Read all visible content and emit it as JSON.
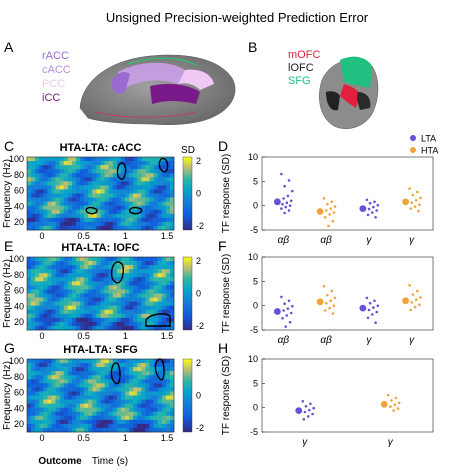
{
  "figure": {
    "title": "Unsigned Precision-weighted Prediction Error",
    "colors": {
      "lta": "#6a4fd8",
      "hta": "#f0a33a",
      "contour": "#000000"
    }
  },
  "panels": {
    "A": {
      "letter": "A",
      "labels": [
        {
          "text": "rACC",
          "color": "#9a6ad0"
        },
        {
          "text": "cACC",
          "color": "#b990e0"
        },
        {
          "text": "PCC",
          "color": "#f0c8f4"
        },
        {
          "text": "iCC",
          "color": "#7a1a8a"
        }
      ]
    },
    "B": {
      "letter": "B",
      "labels": [
        {
          "text": "mOFC",
          "color": "#e0203c"
        },
        {
          "text": "lOFC",
          "color": "#1a1a1a"
        },
        {
          "text": "SFG",
          "color": "#20c080"
        }
      ]
    },
    "tf_maps": [
      {
        "letter": "C",
        "title": "HTA-LTA: cACC"
      },
      {
        "letter": "E",
        "title": "HTA-LTA: lOFC"
      },
      {
        "letter": "G",
        "title": "HTA-LTA: SFG"
      }
    ],
    "tf_axes": {
      "ylabel": "Frequency (Hz)",
      "yticks": [
        "100",
        "80",
        "60",
        "40",
        "20"
      ],
      "xticks": [
        "0",
        "0.5",
        "1",
        "1.5"
      ],
      "xlabel": "Time (s)",
      "outcome_label": "Outcome",
      "colorbar_title": "SD",
      "colorbar_ticks": [
        "2",
        "0",
        "-2"
      ]
    },
    "scatter": {
      "ylabel": "TF response (SD)",
      "yticks": [
        "10",
        "5",
        "0",
        "-5"
      ],
      "legend": [
        "LTA",
        "HTA"
      ],
      "panels": [
        {
          "letter": "D",
          "xticks": [
            "αβ",
            "αβ",
            "γ",
            "γ"
          ]
        },
        {
          "letter": "F",
          "xticks": [
            "αβ",
            "αβ",
            "γ",
            "γ"
          ]
        },
        {
          "letter": "H",
          "xticks": [
            "γ",
            "γ"
          ]
        }
      ]
    }
  },
  "chart_data": [
    {
      "type": "scatter",
      "panel": "D",
      "ylim": [
        -5,
        10
      ],
      "categories": [
        "αβ",
        "αβ",
        "γ",
        "γ"
      ],
      "series": [
        {
          "name": "LTA",
          "group_index": 0,
          "mean": 0.8,
          "points": [
            6.5,
            5.2,
            4.0,
            3.0,
            2.0,
            1.5,
            1.0,
            0.6,
            0.3,
            0.0,
            -0.3,
            -0.6,
            -1.0,
            -1.5
          ]
        },
        {
          "name": "HTA",
          "group_index": 1,
          "mean": -1.2,
          "points": [
            1.5,
            0.8,
            0.3,
            -0.2,
            -0.6,
            -1.0,
            -1.4,
            -1.8,
            -2.4,
            -3.2,
            -4.2
          ]
        },
        {
          "name": "LTA",
          "group_index": 2,
          "mean": -0.6,
          "points": [
            1.2,
            0.8,
            0.5,
            0.1,
            -0.3,
            -0.7,
            -1.0,
            -1.4,
            -1.9,
            -2.4
          ]
        },
        {
          "name": "HTA",
          "group_index": 3,
          "mean": 0.8,
          "points": [
            3.5,
            2.8,
            2.2,
            1.6,
            1.1,
            0.6,
            0.2,
            -0.2,
            -0.6,
            -1.1
          ]
        }
      ]
    },
    {
      "type": "scatter",
      "panel": "F",
      "ylim": [
        -5,
        10
      ],
      "categories": [
        "αβ",
        "αβ",
        "γ",
        "γ"
      ],
      "series": [
        {
          "name": "LTA",
          "group_index": 0,
          "mean": -1.2,
          "points": [
            1.8,
            1.0,
            0.4,
            -0.1,
            -0.6,
            -1.0,
            -1.5,
            -2.0,
            -2.6,
            -3.4,
            -4.3
          ]
        },
        {
          "name": "HTA",
          "group_index": 1,
          "mean": 0.8,
          "points": [
            4.0,
            3.0,
            2.2,
            1.6,
            1.0,
            0.5,
            0.0,
            -0.5,
            -1.0,
            -1.6
          ]
        },
        {
          "name": "LTA",
          "group_index": 2,
          "mean": -0.5,
          "points": [
            1.6,
            1.0,
            0.5,
            0.0,
            -0.4,
            -0.9,
            -1.3,
            -1.8,
            -2.5,
            -3.5
          ]
        },
        {
          "name": "HTA",
          "group_index": 3,
          "mean": 1.0,
          "points": [
            4.2,
            3.0,
            2.3,
            1.7,
            1.2,
            0.7,
            0.2,
            -0.3,
            -0.9
          ]
        }
      ]
    },
    {
      "type": "scatter",
      "panel": "H",
      "ylim": [
        -5,
        10
      ],
      "categories": [
        "γ",
        "γ"
      ],
      "series": [
        {
          "name": "LTA",
          "group_index": 0,
          "mean": -0.6,
          "points": [
            1.3,
            0.8,
            0.3,
            -0.1,
            -0.5,
            -0.9,
            -1.3,
            -1.8,
            -2.4
          ]
        },
        {
          "name": "HTA",
          "group_index": 1,
          "mean": 0.7,
          "points": [
            2.6,
            2.0,
            1.5,
            1.0,
            0.6,
            0.2,
            -0.2,
            -0.6
          ]
        }
      ]
    }
  ]
}
